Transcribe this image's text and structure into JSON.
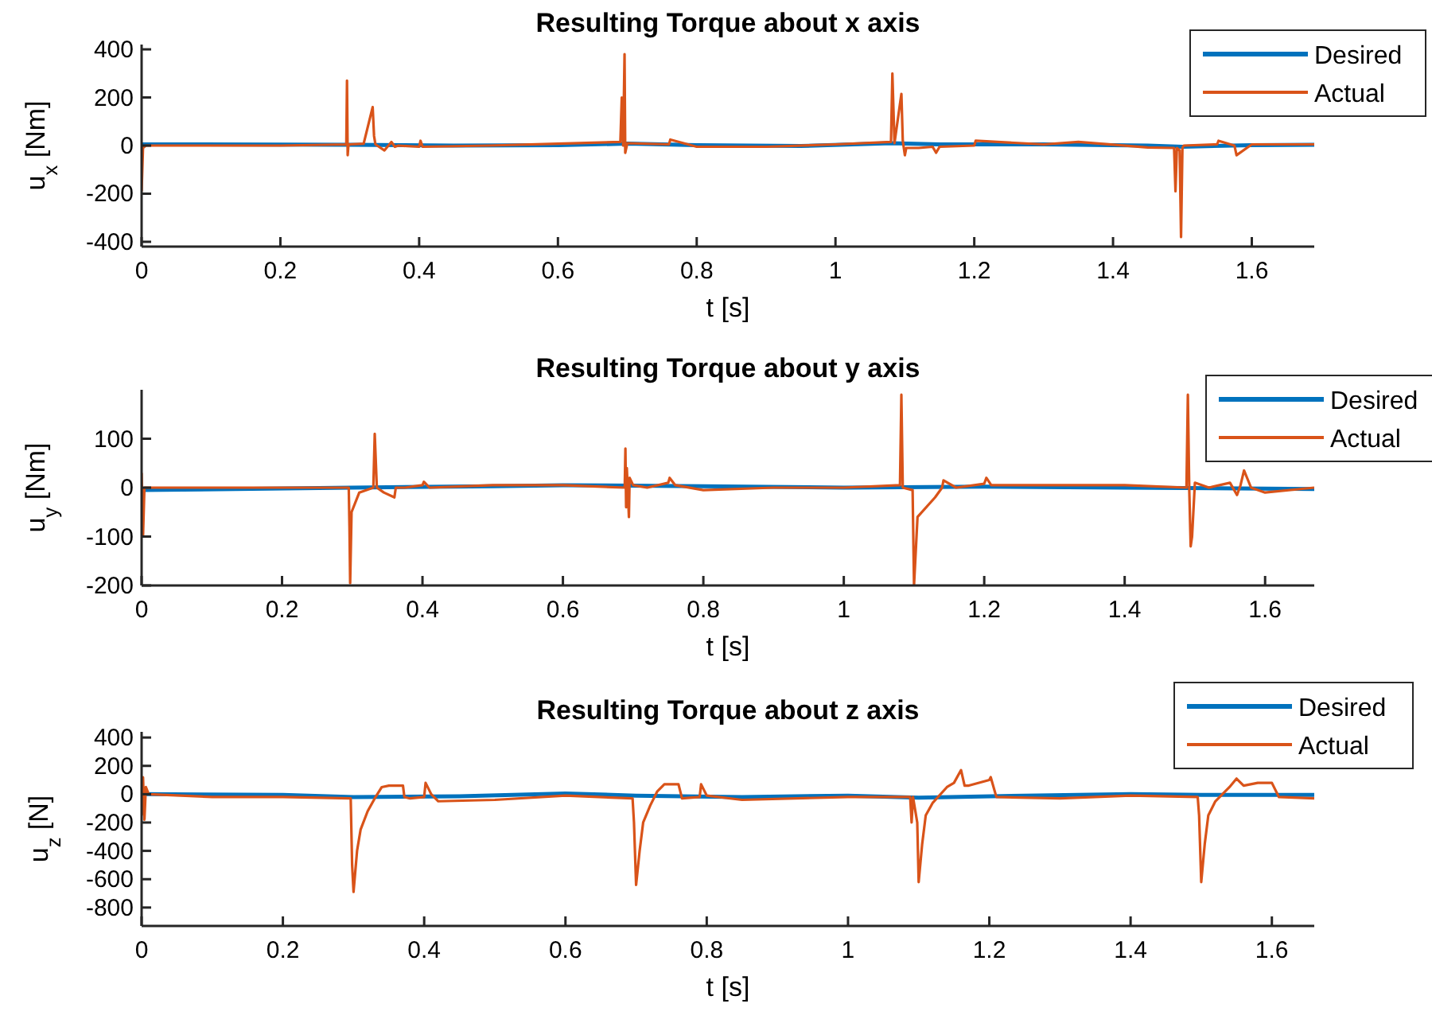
{
  "chart_data": [
    {
      "type": "line",
      "title": "Resulting Torque about x axis",
      "xlabel": "t [s]",
      "ylabel": "u$_{x}$ [Nm]",
      "xlim": [
        0,
        1.69
      ],
      "xticks": [
        0,
        0.2,
        0.4,
        0.6,
        0.8,
        1,
        1.2,
        1.4,
        1.6
      ],
      "ylim": [
        -420,
        420
      ],
      "yticks": [
        -400,
        -200,
        0,
        200,
        400
      ],
      "legend": "top right",
      "grid": false,
      "series": [
        {
          "name": "Desired",
          "color": "#0072bd",
          "x": [
            0,
            0.2,
            0.3,
            0.45,
            0.6,
            0.7,
            0.8,
            0.95,
            1.08,
            1.15,
            1.3,
            1.45,
            1.5,
            1.6,
            1.69
          ],
          "values": [
            5,
            4,
            3,
            0,
            2,
            8,
            2,
            -2,
            10,
            5,
            5,
            0,
            -5,
            2,
            3
          ]
        },
        {
          "name": "Actual",
          "color": "#d95319",
          "x": [
            0,
            0.002,
            0.006,
            0.1,
            0.2,
            0.295,
            0.296,
            0.297,
            0.298,
            0.3,
            0.32,
            0.333,
            0.335,
            0.337,
            0.35,
            0.36,
            0.365,
            0.37,
            0.4,
            0.402,
            0.405,
            0.5,
            0.6,
            0.69,
            0.692,
            0.694,
            0.696,
            0.697,
            0.7,
            0.76,
            0.762,
            0.8,
            0.9,
            1.0,
            1.08,
            1.082,
            1.085,
            1.095,
            1.097,
            1.1,
            1.102,
            1.12,
            1.14,
            1.145,
            1.15,
            1.2,
            1.202,
            1.3,
            1.35,
            1.45,
            1.488,
            1.49,
            1.492,
            1.496,
            1.498,
            1.5,
            1.502,
            1.55,
            1.552,
            1.575,
            1.578,
            1.6,
            1.69
          ],
          "values": [
            -190,
            -10,
            0,
            0,
            0,
            5,
            270,
            -40,
            0,
            5,
            8,
            160,
            40,
            5,
            -20,
            15,
            -5,
            0,
            -5,
            20,
            -5,
            0,
            8,
            15,
            200,
            0,
            380,
            -30,
            10,
            5,
            25,
            -5,
            -5,
            5,
            15,
            300,
            10,
            215,
            20,
            -40,
            -10,
            -10,
            -5,
            -30,
            -5,
            0,
            20,
            5,
            15,
            -8,
            -10,
            -190,
            -10,
            -20,
            -380,
            -10,
            0,
            5,
            20,
            0,
            -40,
            5,
            5
          ]
        }
      ]
    },
    {
      "type": "line",
      "title": "Resulting Torque about y axis",
      "xlabel": "t [s]",
      "ylabel": "u$_{y}$ [Nm]",
      "xlim": [
        0,
        1.67
      ],
      "xticks": [
        0,
        0.2,
        0.4,
        0.6,
        0.8,
        1,
        1.2,
        1.4,
        1.6
      ],
      "ylim": [
        -200,
        200
      ],
      "yticks": [
        -200,
        -100,
        0,
        100
      ],
      "legend": "top right",
      "grid": false,
      "series": [
        {
          "name": "Desired",
          "color": "#0072bd",
          "x": [
            0,
            0.3,
            0.5,
            0.6,
            0.8,
            1.0,
            1.2,
            1.4,
            1.6,
            1.67
          ],
          "values": [
            -5,
            0,
            3,
            5,
            3,
            0,
            2,
            0,
            -2,
            -3
          ]
        },
        {
          "name": "Actual",
          "color": "#d95319",
          "x": [
            0,
            0.002,
            0.004,
            0.008,
            0.1,
            0.29,
            0.295,
            0.296,
            0.297,
            0.299,
            0.31,
            0.33,
            0.332,
            0.335,
            0.345,
            0.36,
            0.362,
            0.375,
            0.4,
            0.402,
            0.41,
            0.5,
            0.6,
            0.688,
            0.689,
            0.69,
            0.691,
            0.694,
            0.695,
            0.7,
            0.72,
            0.75,
            0.752,
            0.76,
            0.8,
            0.9,
            1.0,
            1.08,
            1.082,
            1.084,
            1.098,
            1.1,
            1.105,
            1.13,
            1.14,
            1.142,
            1.16,
            1.2,
            1.203,
            1.21,
            1.3,
            1.4,
            1.488,
            1.49,
            1.492,
            1.494,
            1.496,
            1.5,
            1.52,
            1.55,
            1.56,
            1.565,
            1.57,
            1.58,
            1.6,
            1.67
          ],
          "values": [
            30,
            -100,
            0,
            0,
            0,
            0,
            0,
            -80,
            -195,
            -50,
            -10,
            0,
            110,
            0,
            -10,
            -20,
            0,
            0,
            5,
            12,
            0,
            5,
            5,
            0,
            80,
            -40,
            40,
            -60,
            20,
            5,
            0,
            10,
            20,
            5,
            -5,
            0,
            0,
            5,
            190,
            0,
            -5,
            -200,
            -60,
            -20,
            0,
            15,
            0,
            8,
            20,
            5,
            5,
            5,
            0,
            190,
            -5,
            -120,
            -100,
            10,
            0,
            10,
            -15,
            5,
            35,
            0,
            -10,
            0
          ]
        }
      ]
    },
    {
      "type": "line",
      "title": "Resulting Torque about z axis",
      "xlabel": "t [s]",
      "ylabel": "u$_{z}$ [N]",
      "xlim": [
        0,
        1.66
      ],
      "xticks": [
        0,
        0.2,
        0.4,
        0.6,
        0.8,
        1,
        1.2,
        1.4,
        1.6
      ],
      "ylim": [
        -930,
        440
      ],
      "yticks": [
        -800,
        -600,
        -400,
        -200,
        0,
        200,
        400
      ],
      "legend": "top right",
      "grid": false,
      "series": [
        {
          "name": "Desired",
          "color": "#0072bd",
          "x": [
            0,
            0.2,
            0.3,
            0.45,
            0.6,
            0.7,
            0.85,
            1.0,
            1.1,
            1.25,
            1.4,
            1.5,
            1.66
          ],
          "values": [
            0,
            -5,
            -20,
            -15,
            5,
            -10,
            -20,
            -10,
            -25,
            -10,
            0,
            -5,
            -5
          ]
        },
        {
          "name": "Actual",
          "color": "#d95319",
          "x": [
            0,
            0.002,
            0.004,
            0.006,
            0.01,
            0.1,
            0.2,
            0.296,
            0.298,
            0.3,
            0.305,
            0.31,
            0.32,
            0.33,
            0.34,
            0.35,
            0.37,
            0.372,
            0.38,
            0.4,
            0.402,
            0.41,
            0.42,
            0.5,
            0.6,
            0.695,
            0.697,
            0.7,
            0.705,
            0.71,
            0.72,
            0.73,
            0.74,
            0.76,
            0.765,
            0.79,
            0.792,
            0.8,
            0.85,
            1.0,
            1.088,
            1.09,
            1.092,
            1.098,
            1.1,
            1.105,
            1.11,
            1.12,
            1.14,
            1.15,
            1.16,
            1.165,
            1.17,
            1.2,
            1.202,
            1.21,
            1.3,
            1.4,
            1.495,
            1.497,
            1.5,
            1.505,
            1.51,
            1.52,
            1.54,
            1.55,
            1.56,
            1.58,
            1.6,
            1.61,
            1.66
          ],
          "values": [
            -150,
            120,
            -180,
            50,
            0,
            -20,
            -20,
            -30,
            -500,
            -690,
            -400,
            -250,
            -120,
            -30,
            50,
            60,
            60,
            -20,
            -30,
            -20,
            80,
            0,
            -50,
            -40,
            -10,
            -30,
            -200,
            -640,
            -400,
            -200,
            -80,
            20,
            70,
            70,
            -30,
            -20,
            70,
            -10,
            -40,
            -20,
            -20,
            -200,
            -20,
            -200,
            -620,
            -350,
            -150,
            -60,
            50,
            80,
            170,
            60,
            60,
            100,
            120,
            -20,
            -30,
            -10,
            -20,
            -150,
            -620,
            -350,
            -150,
            -50,
            50,
            110,
            60,
            80,
            80,
            -20,
            -30
          ]
        }
      ]
    }
  ]
}
